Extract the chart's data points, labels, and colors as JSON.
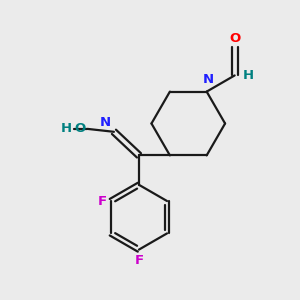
{
  "bg_color": "#ebebeb",
  "bond_color": "#1a1a1a",
  "N_color": "#2020ff",
  "O_color": "#ff0000",
  "F_color": "#cc00cc",
  "OH_color": "#008080",
  "H_color": "#008080",
  "figsize": [
    3.0,
    3.0
  ],
  "dpi": 100,
  "xlim": [
    0,
    10
  ],
  "ylim": [
    0,
    10
  ],
  "lw": 1.6,
  "fontsize": 9.5
}
